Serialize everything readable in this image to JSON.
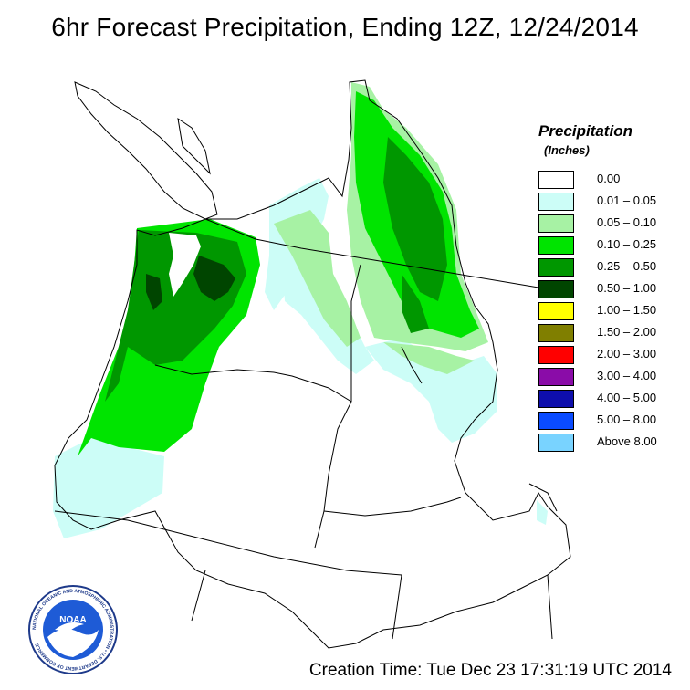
{
  "title": "6hr Forecast Precipitation, Ending 12Z, 12/24/2014",
  "legend": {
    "title": "Precipitation",
    "units": "(Inches)",
    "items": [
      {
        "label": "0.00",
        "color": "#ffffff"
      },
      {
        "label": "0.01 – 0.05",
        "color": "#ccfdf7"
      },
      {
        "label": "0.05 – 0.10",
        "color": "#a7f2a4"
      },
      {
        "label": "0.10 – 0.25",
        "color": "#00e400"
      },
      {
        "label": "0.25 – 0.50",
        "color": "#009700"
      },
      {
        "label": "0.50 – 1.00",
        "color": "#004500"
      },
      {
        "label": "1.00 – 1.50",
        "color": "#ffff00"
      },
      {
        "label": "1.50 – 2.00",
        "color": "#807f00"
      },
      {
        "label": "2.00 – 3.00",
        "color": "#ff0000"
      },
      {
        "label": "3.00 – 4.00",
        "color": "#8a0ca8"
      },
      {
        "label": "4.00 – 5.00",
        "color": "#0e0eac"
      },
      {
        "label": "5.00 – 8.00",
        "color": "#0a4bff"
      },
      {
        "label": "Above 8.00",
        "color": "#79d3ff"
      }
    ]
  },
  "logo": {
    "agency": "NOAA",
    "ring_text": "NATIONAL OCEANIC AND ATMOSPHERIC ADMINISTRATION • U.S. DEPARTMENT OF COMMERCE"
  },
  "creation_time": "Creation Time: Tue Dec 23 17:31:19 UTC 2014"
}
